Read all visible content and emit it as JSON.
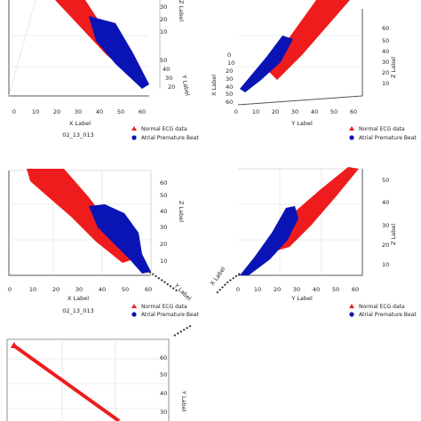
{
  "colors": {
    "normal": "#ee1c1c",
    "premature": "#0a14b4",
    "axis": "#555555",
    "grid": "#d4d4d4"
  },
  "chart_data": [
    {
      "type": "scatter",
      "title": "02_13_013",
      "xlabel": "X Label",
      "ylabel": "Y Label",
      "zlabel": "Z Label",
      "x_ticks": [
        "0",
        "10",
        "20",
        "30",
        "40",
        "50",
        "60"
      ],
      "y_ticks": [
        "20",
        "30",
        "40",
        "50"
      ],
      "z_ticks": [
        "10",
        "20",
        "30"
      ],
      "legend": [
        "Normal ECG data",
        "Atrial Premature Beat"
      ],
      "legend_position": "bottom-right",
      "series": [
        {
          "name": "Normal ECG data",
          "marker": "triangle",
          "x": [
            8,
            12,
            16,
            20,
            24,
            28,
            32,
            36,
            40,
            44,
            48
          ],
          "y": [
            60,
            57,
            54,
            51,
            48,
            45,
            42,
            39,
            36,
            33,
            30
          ]
        },
        {
          "name": "Atrial Premature Beat",
          "marker": "circle",
          "x": [
            34,
            38,
            42,
            46,
            50,
            54,
            58,
            60
          ],
          "y": [
            50,
            46,
            42,
            38,
            34,
            30,
            26,
            24
          ]
        }
      ]
    },
    {
      "type": "scatter",
      "title": "",
      "xlabel": "X Label",
      "ylabel": "Y Label",
      "zlabel": "Z Label",
      "x_ticks": [
        "0",
        "10",
        "20",
        "30",
        "40",
        "50",
        "60"
      ],
      "y_ticks": [
        "0",
        "10",
        "20",
        "30",
        "40",
        "50",
        "60"
      ],
      "z_ticks": [
        "10",
        "20",
        "30",
        "40",
        "50",
        "60"
      ],
      "legend": [
        "Normal ECG data",
        "Atrial Premature Beat"
      ],
      "legend_position": "bottom-right",
      "series": [
        {
          "name": "Normal ECG data",
          "marker": "triangle",
          "x": [
            20,
            24,
            28,
            32,
            36,
            40,
            44,
            48,
            52,
            56
          ],
          "y": [
            20,
            24,
            28,
            32,
            36,
            40,
            44,
            48,
            52,
            56
          ]
        },
        {
          "name": "Atrial Premature Beat",
          "marker": "circle",
          "x": [
            2,
            6,
            10,
            14,
            18,
            22,
            26
          ],
          "y": [
            2,
            6,
            10,
            14,
            18,
            22,
            26
          ]
        }
      ]
    },
    {
      "type": "scatter",
      "title": "02_13_013",
      "xlabel": "X Label",
      "ylabel": "Y Label",
      "zlabel": "Z Label",
      "x_ticks": [
        "0",
        "10",
        "20",
        "30",
        "40",
        "50",
        "60"
      ],
      "y_ticks": [],
      "z_ticks": [
        "10",
        "20",
        "30",
        "40",
        "50",
        "60"
      ],
      "legend": [
        "Normal ECG data",
        "Atrial Premature Beat"
      ],
      "legend_position": "bottom-right",
      "series": [
        {
          "name": "Normal ECG data",
          "marker": "triangle",
          "x": [
            5,
            10,
            15,
            20,
            25,
            30,
            35,
            40,
            45,
            50
          ],
          "y": [
            60,
            56,
            51,
            47,
            42,
            38,
            33,
            29,
            24,
            20
          ]
        },
        {
          "name": "Atrial Premature Beat",
          "marker": "circle",
          "x": [
            34,
            38,
            42,
            46,
            50,
            54,
            58
          ],
          "y": [
            45,
            40,
            35,
            30,
            25,
            18,
            12
          ]
        }
      ]
    },
    {
      "type": "scatter",
      "title": "",
      "xlabel": "X Label",
      "ylabel": "Y Label",
      "zlabel": "Z Label",
      "x_ticks": [
        "0",
        "10",
        "20",
        "30",
        "40",
        "50",
        "60"
      ],
      "y_ticks": [],
      "z_ticks": [
        "10",
        "20",
        "30",
        "40",
        "50"
      ],
      "legend": [
        "Normal ECG data",
        "Atrial Premature Beat"
      ],
      "legend_position": "bottom-right",
      "series": [
        {
          "name": "Normal ECG data",
          "marker": "triangle",
          "x": [
            24,
            28,
            32,
            36,
            40,
            44,
            48,
            52,
            56
          ],
          "y": [
            25,
            29,
            33,
            37,
            41,
            45,
            49,
            52,
            55
          ]
        },
        {
          "name": "Atrial Premature Beat",
          "marker": "circle",
          "x": [
            4,
            8,
            12,
            16,
            20,
            24,
            28
          ],
          "y": [
            8,
            12,
            17,
            22,
            27,
            32,
            36
          ]
        }
      ]
    },
    {
      "type": "scatter",
      "title": "",
      "xlabel": "",
      "ylabel": "Y Label",
      "zlabel": "",
      "x_ticks": [],
      "y_ticks": [
        "30",
        "40",
        "50",
        "60"
      ],
      "z_ticks": [],
      "legend": [],
      "series": [
        {
          "name": "Normal ECG data",
          "marker": "triangle",
          "x": [
            0,
            10,
            20,
            30,
            40,
            50,
            60,
            70,
            80,
            90,
            100
          ],
          "y": [
            62,
            59,
            56,
            53,
            50,
            47,
            44,
            41,
            38,
            35,
            32
          ]
        }
      ]
    }
  ]
}
